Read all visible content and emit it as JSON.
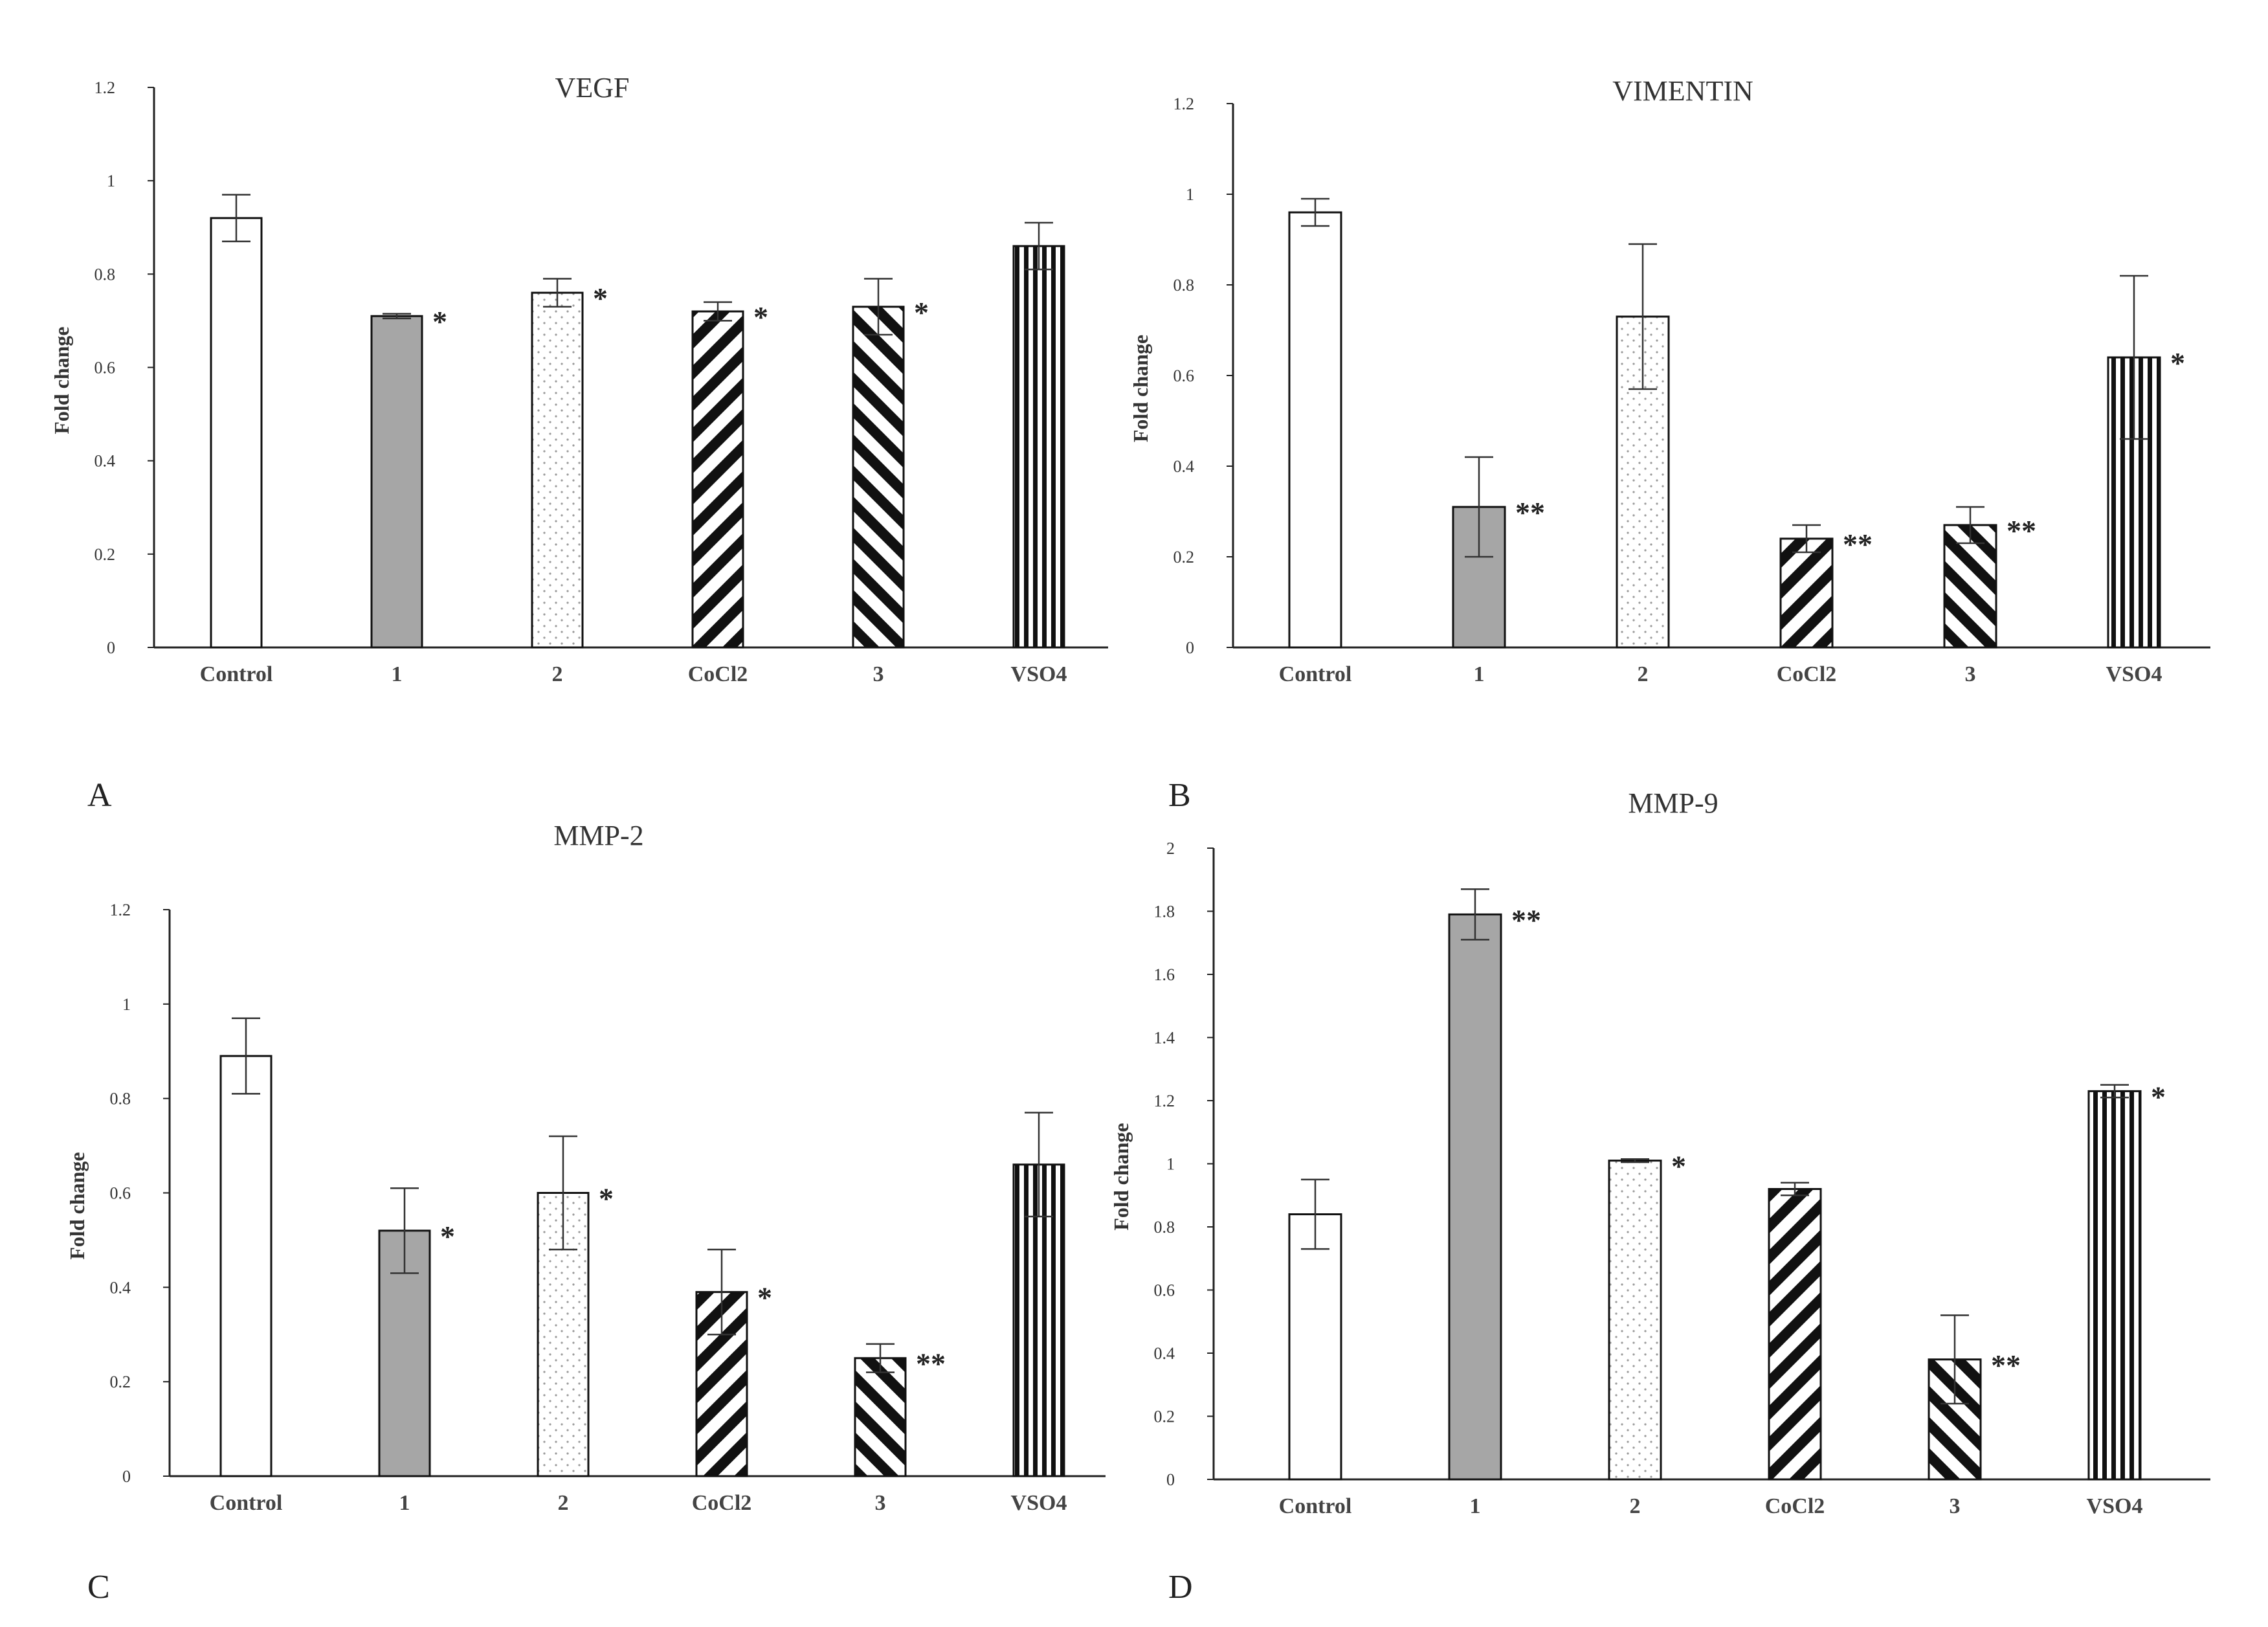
{
  "figure": {
    "panel_labels": [
      "A",
      "B",
      "C",
      "D"
    ]
  },
  "chart_data": [
    {
      "type": "bar",
      "title": "VEGF",
      "xlabel": "",
      "ylabel": "Fold change",
      "categories": [
        "Control",
        "1",
        "2",
        "CoCl2",
        "3",
        "VSO4"
      ],
      "values": [
        0.92,
        0.71,
        0.76,
        0.72,
        0.73,
        0.86
      ],
      "errors": [
        0.05,
        0.005,
        0.03,
        0.02,
        0.06,
        0.05
      ],
      "significance": [
        "",
        "*",
        "*",
        "*",
        "*",
        ""
      ],
      "patterns": [
        "white",
        "gray",
        "dots",
        "diag-back",
        "diag-fwd",
        "vertical"
      ],
      "ylim": [
        0,
        1.2
      ],
      "yticks": [
        "0",
        "0.2",
        "0.4",
        "0.6",
        "0.8",
        "1",
        "1.2"
      ],
      "grid": false
    },
    {
      "type": "bar",
      "title": "VIMENTIN",
      "xlabel": "",
      "ylabel": "Fold change",
      "categories": [
        "Control",
        "1",
        "2",
        "CoCl2",
        "3",
        "VSO4"
      ],
      "values": [
        0.96,
        0.31,
        0.73,
        0.24,
        0.27,
        0.64
      ],
      "errors": [
        0.03,
        0.11,
        0.16,
        0.03,
        0.04,
        0.18
      ],
      "significance": [
        "",
        "**",
        "",
        "**",
        "**",
        "*"
      ],
      "patterns": [
        "white",
        "gray",
        "dots",
        "diag-back",
        "diag-fwd",
        "vertical"
      ],
      "ylim": [
        0,
        1.2
      ],
      "yticks": [
        "0",
        "0.2",
        "0.4",
        "0.6",
        "0.8",
        "1",
        "1.2"
      ],
      "grid": false
    },
    {
      "type": "bar",
      "title": "MMP-2",
      "xlabel": "",
      "ylabel": "Fold change",
      "categories": [
        "Control",
        "1",
        "2",
        "CoCl2",
        "3",
        "VSO4"
      ],
      "values": [
        0.89,
        0.52,
        0.6,
        0.39,
        0.25,
        0.66
      ],
      "errors": [
        0.08,
        0.09,
        0.12,
        0.09,
        0.03,
        0.11
      ],
      "significance": [
        "",
        "*",
        "*",
        "*",
        "**",
        ""
      ],
      "patterns": [
        "white",
        "gray",
        "dots",
        "diag-back",
        "diag-fwd",
        "vertical"
      ],
      "ylim": [
        0,
        1.2
      ],
      "yticks": [
        "0",
        "0.2",
        "0.4",
        "0.6",
        "0.8",
        "1",
        "1.2"
      ],
      "grid": false
    },
    {
      "type": "bar",
      "title": "MMP-9",
      "xlabel": "",
      "ylabel": "Fold change",
      "categories": [
        "Control",
        "1",
        "2",
        "CoCl2",
        "3",
        "VSO4"
      ],
      "values": [
        0.84,
        1.79,
        1.01,
        0.92,
        0.38,
        1.23
      ],
      "errors": [
        0.11,
        0.08,
        0.005,
        0.02,
        0.14,
        0.02
      ],
      "significance": [
        "",
        "**",
        "*",
        "",
        "**",
        "*"
      ],
      "patterns": [
        "white",
        "gray",
        "dots",
        "diag-back",
        "diag-fwd",
        "vertical"
      ],
      "ylim": [
        0,
        2
      ],
      "yticks": [
        "0",
        "0.2",
        "0.4",
        "0.6",
        "0.8",
        "1",
        "1.2",
        "1.4",
        "1.6",
        "1.8",
        "2"
      ],
      "grid": false
    }
  ]
}
